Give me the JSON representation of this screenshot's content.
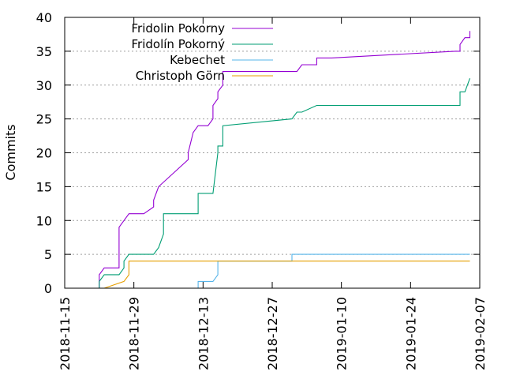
{
  "chart_data": {
    "type": "line",
    "xlabel": "",
    "ylabel": "Commits",
    "x_type": "date",
    "xlim": [
      "2018-11-15",
      "2019-02-07"
    ],
    "ylim": [
      0,
      40
    ],
    "y_ticks": [
      0,
      5,
      10,
      15,
      20,
      25,
      30,
      35,
      40
    ],
    "x_ticks": [
      "2018-11-15",
      "2018-11-29",
      "2018-12-13",
      "2018-12-27",
      "2019-01-10",
      "2019-01-24",
      "2019-02-07"
    ],
    "grid": "horizontal",
    "legend_position": "top-left",
    "series": [
      {
        "name": "Fridolin Pokorny",
        "color": "#9400d3",
        "x": [
          "2018-11-22",
          "2018-11-22",
          "2018-11-23",
          "2018-11-26",
          "2018-11-26",
          "2018-11-27",
          "2018-11-28",
          "2018-12-01",
          "2018-12-03",
          "2018-12-03",
          "2018-12-04",
          "2018-12-04",
          "2018-12-10",
          "2018-12-10",
          "2018-12-11",
          "2018-12-12",
          "2018-12-13",
          "2018-12-14",
          "2018-12-15",
          "2018-12-15",
          "2018-12-16",
          "2018-12-16",
          "2018-12-17",
          "2018-12-17",
          "2019-01-01",
          "2019-01-02",
          "2019-01-04",
          "2019-01-05",
          "2019-01-05",
          "2019-01-08",
          "2019-02-02",
          "2019-02-03",
          "2019-02-03",
          "2019-02-04",
          "2019-02-05",
          "2019-02-05"
        ],
        "y": [
          0,
          2,
          3,
          3,
          9,
          10,
          11,
          11,
          12,
          13,
          15,
          15,
          19,
          20,
          23,
          24,
          24,
          24,
          25,
          27,
          28,
          29,
          30,
          32,
          32,
          33,
          33,
          33,
          34,
          34,
          35,
          35,
          36,
          37,
          37,
          38
        ]
      },
      {
        "name": "Fridolín Pokorný",
        "color": "#009e73",
        "x": [
          "2018-11-22",
          "2018-11-22",
          "2018-11-23",
          "2018-11-26",
          "2018-11-27",
          "2018-11-27",
          "2018-11-28",
          "2018-12-03",
          "2018-12-04",
          "2018-12-05",
          "2018-12-05",
          "2018-12-12",
          "2018-12-12",
          "2018-12-15",
          "2018-12-16",
          "2018-12-16",
          "2018-12-17",
          "2018-12-17",
          "2018-12-31",
          "2019-01-01",
          "2019-01-02",
          "2019-01-05",
          "2019-02-03",
          "2019-02-03",
          "2019-02-04",
          "2019-02-05"
        ],
        "y": [
          0,
          1,
          2,
          2,
          3,
          4,
          5,
          5,
          6,
          8,
          11,
          11,
          14,
          14,
          20,
          21,
          21,
          24,
          25,
          26,
          26,
          27,
          27,
          29,
          29,
          31
        ]
      },
      {
        "name": "Kebechet",
        "color": "#56b4e9",
        "x": [
          "2018-12-12",
          "2018-12-12",
          "2018-12-15",
          "2018-12-16",
          "2018-12-16",
          "2018-12-31",
          "2018-12-31",
          "2019-02-05"
        ],
        "y": [
          0,
          1,
          1,
          2,
          4,
          4,
          5,
          5
        ]
      },
      {
        "name": "Christoph Görn",
        "color": "#e69f00",
        "x": [
          "2018-11-23",
          "2018-11-27",
          "2018-11-28",
          "2018-11-28",
          "2019-02-05"
        ],
        "y": [
          0,
          1,
          2,
          4,
          4
        ]
      }
    ]
  }
}
